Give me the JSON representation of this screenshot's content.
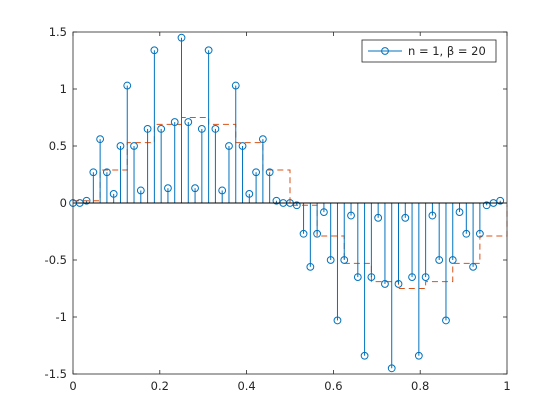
{
  "chart_data": {
    "type": "stem",
    "xlim": [
      0,
      1
    ],
    "ylim": [
      -1.5,
      1.5
    ],
    "x_ticks": [
      0,
      0.2,
      0.4,
      0.6,
      0.8,
      1
    ],
    "x_tick_labels": [
      "0",
      "0.2",
      "0.4",
      "0.6",
      "0.8",
      "1"
    ],
    "y_ticks": [
      -1.5,
      -1,
      -0.5,
      0,
      0.5,
      1,
      1.5
    ],
    "y_tick_labels": [
      "-1.5",
      "-1",
      "-0.5",
      "0",
      "0.5",
      "1",
      "1.5"
    ],
    "grid": false,
    "legend": {
      "location": "top-right",
      "entries": [
        {
          "label": "n = 1, β = 20",
          "color": "#0072BD",
          "marker": "circle"
        }
      ]
    },
    "series": [
      {
        "name": "n = 1, β = 20",
        "style": "stem",
        "color": "#0072BD",
        "x": [
          0,
          0.015625,
          0.03125,
          0.046875,
          0.0625,
          0.078125,
          0.09375,
          0.109375,
          0.125,
          0.140625,
          0.15625,
          0.171875,
          0.1875,
          0.203125,
          0.21875,
          0.234375,
          0.25,
          0.265625,
          0.28125,
          0.296875,
          0.3125,
          0.328125,
          0.34375,
          0.359375,
          0.375,
          0.390625,
          0.40625,
          0.421875,
          0.4375,
          0.453125,
          0.46875,
          0.484375,
          0.5,
          0.515625,
          0.53125,
          0.546875,
          0.5625,
          0.578125,
          0.59375,
          0.609375,
          0.625,
          0.640625,
          0.65625,
          0.671875,
          0.6875,
          0.703125,
          0.71875,
          0.734375,
          0.75,
          0.765625,
          0.78125,
          0.796875,
          0.8125,
          0.828125,
          0.84375,
          0.859375,
          0.875,
          0.890625,
          0.90625,
          0.921875,
          0.9375,
          0.953125,
          0.96875,
          0.984375
        ],
        "y": [
          0,
          0,
          0.02,
          0.27,
          0.56,
          0.27,
          0.08,
          0.5,
          1.03,
          0.5,
          0.11,
          0.65,
          1.34,
          0.65,
          0.13,
          0.71,
          1.45,
          0.71,
          0.13,
          0.65,
          1.34,
          0.65,
          0.11,
          0.5,
          1.03,
          0.5,
          0.08,
          0.27,
          0.56,
          0.27,
          0.02,
          0,
          0,
          -0.02,
          -0.27,
          -0.56,
          -0.27,
          -0.08,
          -0.5,
          -1.03,
          -0.5,
          -0.11,
          -0.65,
          -1.34,
          -0.65,
          -0.13,
          -0.71,
          -1.45,
          -0.71,
          -0.13,
          -0.65,
          -1.34,
          -0.65,
          -0.11,
          -0.5,
          -1.03,
          -0.5,
          -0.08,
          -0.27,
          -0.56,
          -0.27,
          -0.02,
          0,
          0.02
        ]
      },
      {
        "style": "stairs-dashed",
        "color": "#D95319",
        "x": [
          0,
          0.0625,
          0.125,
          0.1875,
          0.25,
          0.3125,
          0.375,
          0.4375,
          0.5,
          0.5625,
          0.625,
          0.6875,
          0.75,
          0.8125,
          0.875,
          0.9375,
          1
        ],
        "y": [
          0.02,
          0.29,
          0.53,
          0.69,
          0.75,
          0.69,
          0.53,
          0.29,
          -0.02,
          -0.29,
          -0.53,
          -0.69,
          -0.75,
          -0.69,
          -0.53,
          -0.29,
          -0.02
        ]
      }
    ]
  }
}
